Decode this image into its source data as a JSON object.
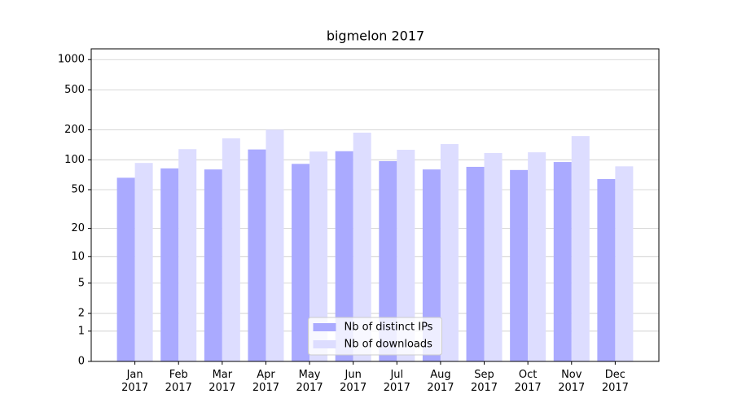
{
  "chart_data": {
    "type": "bar",
    "title": "bigmelon 2017",
    "categories": [
      "Jan\n2017",
      "Feb\n2017",
      "Mar\n2017",
      "Apr\n2017",
      "May\n2017",
      "Jun\n2017",
      "Jul\n2017",
      "Aug\n2017",
      "Sep\n2017",
      "Oct\n2017",
      "Nov\n2017",
      "Dec\n2017"
    ],
    "series": [
      {
        "name": "Nb of distinct IPs",
        "color": "#aaaaff",
        "values": [
          66,
          82,
          80,
          127,
          91,
          122,
          97,
          80,
          85,
          79,
          95,
          64
        ]
      },
      {
        "name": "Nb of downloads",
        "color": "#ddddff",
        "values": [
          93,
          128,
          164,
          200,
          121,
          187,
          126,
          144,
          117,
          119,
          173,
          86
        ]
      }
    ],
    "ylim": [
      0,
      1280
    ],
    "yticks": [
      0,
      1,
      2,
      5,
      10,
      20,
      50,
      100,
      200,
      500,
      1000
    ],
    "yscale": "log1p",
    "grid": true,
    "legend": "lower center"
  }
}
